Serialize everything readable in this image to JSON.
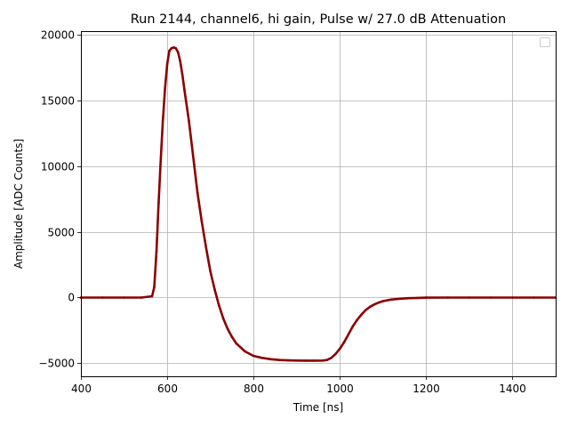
{
  "chart_data": {
    "type": "scatter",
    "title": "Run 2144, channel6, hi gain, Pulse w/ 27.0 dB Attenuation",
    "xlabel": "Time [ns]",
    "ylabel": "Amplitude [ADC Counts]",
    "xlim": [
      400,
      1500
    ],
    "ylim": [
      -6000,
      20300
    ],
    "xticks": [
      400,
      600,
      800,
      1000,
      1200,
      1400
    ],
    "xtick_labels": [
      "400",
      "600",
      "800",
      "1000",
      "1200",
      "1400"
    ],
    "yticks": [
      -5000,
      0,
      5000,
      10000,
      15000,
      20000
    ],
    "ytick_labels": [
      "−5000",
      "0",
      "5000",
      "10000",
      "15000",
      "20000"
    ],
    "grid": true,
    "legend": {
      "placement": "top-right",
      "entries": []
    },
    "marker_color": "#8b0000",
    "series": [
      {
        "x": [
          400,
          450,
          500,
          540,
          565,
          570,
          575,
          580,
          585,
          590,
          595,
          600,
          605,
          610,
          615,
          620,
          625,
          630,
          635,
          640,
          650,
          660,
          670,
          680,
          690,
          700,
          710,
          720,
          730,
          740,
          750,
          760,
          780,
          800,
          820,
          840,
          860,
          880,
          900,
          920,
          940,
          960,
          970,
          980,
          990,
          1000,
          1010,
          1020,
          1030,
          1040,
          1050,
          1060,
          1070,
          1080,
          1090,
          1100,
          1120,
          1140,
          1160,
          1180,
          1200,
          1250,
          1300,
          1350,
          1400,
          1450,
          1500
        ],
        "y": [
          0,
          0,
          0,
          0,
          100,
          800,
          3500,
          7200,
          10500,
          13500,
          16000,
          17800,
          18800,
          19000,
          19050,
          19000,
          18700,
          18000,
          17000,
          15800,
          13500,
          10800,
          8000,
          5800,
          3800,
          2000,
          600,
          -600,
          -1600,
          -2400,
          -3000,
          -3500,
          -4100,
          -4450,
          -4600,
          -4700,
          -4760,
          -4790,
          -4800,
          -4810,
          -4810,
          -4800,
          -4760,
          -4600,
          -4300,
          -3900,
          -3400,
          -2800,
          -2200,
          -1700,
          -1300,
          -950,
          -700,
          -520,
          -380,
          -270,
          -150,
          -90,
          -50,
          -25,
          -10,
          0,
          0,
          0,
          0,
          0,
          0
        ]
      }
    ]
  }
}
